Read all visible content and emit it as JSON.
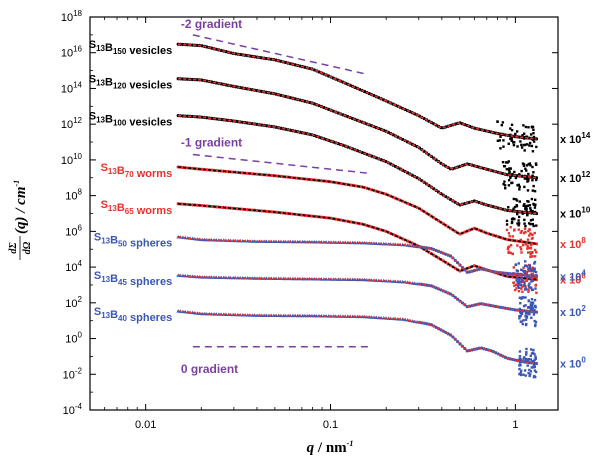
{
  "colors": {
    "black_series": "#000000",
    "red_series": "#e8322f",
    "blue_series": "#3a57b5",
    "gradient_lines": "#7b3fa0",
    "fit_black_on_black": "#e8322f",
    "fit_red": "#000000",
    "fit_blue": "#e8322f"
  },
  "chart_data": {
    "type": "scatter",
    "xscale": "log",
    "yscale": "log",
    "xlim": [
      0.005,
      1.7
    ],
    "ylim": [
      0.0001,
      1e+18
    ],
    "xticks": [
      {
        "value": 0.01,
        "label": "0.01"
      },
      {
        "value": 0.1,
        "label": "0.1"
      },
      {
        "value": 1,
        "label": "1"
      }
    ],
    "yticks": [
      {
        "value": 1e+18,
        "base": "10",
        "exp": "18"
      },
      {
        "value": 1e+16,
        "base": "10",
        "exp": "16"
      },
      {
        "value": 100000000000000.0,
        "base": "10",
        "exp": "14"
      },
      {
        "value": 1000000000000.0,
        "base": "10",
        "exp": "12"
      },
      {
        "value": 10000000000.0,
        "base": "10",
        "exp": "10"
      },
      {
        "value": 100000000.0,
        "base": "10",
        "exp": "8"
      },
      {
        "value": 1000000.0,
        "base": "10",
        "exp": "6"
      },
      {
        "value": 10000.0,
        "base": "10",
        "exp": "4"
      },
      {
        "value": 100.0,
        "base": "10",
        "exp": "2"
      },
      {
        "value": 1,
        "base": "10",
        "exp": "0"
      },
      {
        "value": 0.01,
        "base": "10",
        "exp": "-2"
      },
      {
        "value": 0.0001,
        "base": "10",
        "exp": "-4"
      }
    ],
    "xlabel": {
      "var": "q",
      "rest": " / nm",
      "exp": "-1"
    },
    "ylabel": {
      "frac_num": "dΣ",
      "frac_den": "dΩ",
      "rest": "(q) / cm",
      "exp": "-1"
    },
    "series": [
      {
        "name": "S13B150 vesicles",
        "label_main": "S",
        "label_sub1": "13",
        "label_mid": "B",
        "label_sub2": "150",
        "label_tail": " vesicles",
        "color_key": "black_series",
        "multiplier": {
          "base": "x 10",
          "exp": "14"
        },
        "curve": [
          [
            0.015,
            3e+16
          ],
          [
            0.02,
            2.5e+16
          ],
          [
            0.03,
            9000000000000000.0
          ],
          [
            0.05,
            4000000000000000.0
          ],
          [
            0.08,
            1200000000000000.0
          ],
          [
            0.12,
            200000000000000.0
          ],
          [
            0.2,
            20000000000000.0
          ],
          [
            0.3,
            3000000000000.0
          ],
          [
            0.4,
            600000000000.0
          ],
          [
            0.5,
            1200000000000.0
          ],
          [
            0.6,
            600000000000.0
          ],
          [
            0.8,
            300000000000.0
          ],
          [
            1.0,
            200000000000.0
          ],
          [
            1.3,
            150000000000.0
          ]
        ],
        "noise_from": 0.8,
        "noise_to": 1.3
      },
      {
        "name": "S13B120 vesicles",
        "label_main": "S",
        "label_sub1": "13",
        "label_mid": "B",
        "label_sub2": "120",
        "label_tail": " vesicles",
        "color_key": "black_series",
        "multiplier": {
          "base": "x 10",
          "exp": "12"
        },
        "curve": [
          [
            0.015,
            350000000000000.0
          ],
          [
            0.02,
            300000000000000.0
          ],
          [
            0.03,
            130000000000000.0
          ],
          [
            0.05,
            50000000000000.0
          ],
          [
            0.08,
            15000000000000.0
          ],
          [
            0.12,
            3000000000000.0
          ],
          [
            0.2,
            400000000000.0
          ],
          [
            0.3,
            50000000000.0
          ],
          [
            0.4,
            6000000000.0
          ],
          [
            0.45,
            3000000000.0
          ],
          [
            0.55,
            6000000000.0
          ],
          [
            0.7,
            3000000000.0
          ],
          [
            0.9,
            1500000000.0
          ],
          [
            1.3,
            1000000000.0
          ]
        ],
        "noise_from": 0.85,
        "noise_to": 1.3
      },
      {
        "name": "S13B100 vesicles",
        "label_main": "S",
        "label_sub1": "13",
        "label_mid": "B",
        "label_sub2": "100",
        "label_tail": " vesicles",
        "color_key": "black_series",
        "multiplier": {
          "base": "x 10",
          "exp": "10"
        },
        "curve": [
          [
            0.015,
            3000000000000.0
          ],
          [
            0.02,
            2500000000000.0
          ],
          [
            0.03,
            1500000000000.0
          ],
          [
            0.05,
            700000000000.0
          ],
          [
            0.08,
            250000000000.0
          ],
          [
            0.12,
            60000000000.0
          ],
          [
            0.2,
            8000000000.0
          ],
          [
            0.3,
            900000000.0
          ],
          [
            0.4,
            120000000.0
          ],
          [
            0.5,
            30000000.0
          ],
          [
            0.6,
            50000000.0
          ],
          [
            0.7,
            30000000.0
          ],
          [
            0.9,
            15000000.0
          ],
          [
            1.3,
            10000000.0
          ]
        ],
        "noise_from": 0.9,
        "noise_to": 1.3
      },
      {
        "name": "S13B70 worms",
        "label_main": "S",
        "label_sub1": "13",
        "label_mid": "B",
        "label_sub2": "70",
        "label_tail": " worms",
        "color_key": "red_series",
        "multiplier": {
          "base": "x 10",
          "exp": "8"
        },
        "curve": [
          [
            0.015,
            4000000000.0
          ],
          [
            0.02,
            3000000000.0
          ],
          [
            0.05,
            1300000000.0
          ],
          [
            0.1,
            600000000.0
          ],
          [
            0.15,
            300000000.0
          ],
          [
            0.2,
            120000000.0
          ],
          [
            0.3,
            20000000.0
          ],
          [
            0.4,
            3000000.0
          ],
          [
            0.5,
            700000.0
          ],
          [
            0.6,
            1500000.0
          ],
          [
            0.7,
            800000.0
          ],
          [
            0.9,
            350000.0
          ],
          [
            1.3,
            200000.0
          ]
        ],
        "noise_from": 0.9,
        "noise_to": 1.3
      },
      {
        "name": "S13B65 worms",
        "label_main": "S",
        "label_sub1": "13",
        "label_mid": "B",
        "label_sub2": "65",
        "label_tail": " worms",
        "color_key": "red_series",
        "multiplier": {
          "base": "x 10",
          "exp": "6"
        },
        "curve": [
          [
            0.015,
            35000000.0
          ],
          [
            0.02,
            28000000.0
          ],
          [
            0.05,
            12000000.0
          ],
          [
            0.1,
            5500000.0
          ],
          [
            0.15,
            2500000.0
          ],
          [
            0.2,
            1000000.0
          ],
          [
            0.3,
            150000.0
          ],
          [
            0.4,
            25000.0
          ],
          [
            0.5,
            6000.0
          ],
          [
            0.6,
            12000.0
          ],
          [
            0.7,
            7000.0
          ],
          [
            0.9,
            3000.0
          ],
          [
            1.3,
            2000.0
          ]
        ],
        "noise_from": 0.95,
        "noise_to": 1.3
      },
      {
        "name": "S13B50 spheres",
        "label_main": "S",
        "label_sub1": "13",
        "label_mid": "B",
        "label_sub2": "50",
        "label_tail": " spheres",
        "color_key": "blue_series",
        "multiplier": {
          "base": "x 10",
          "exp": "4"
        },
        "curve": [
          [
            0.015,
            500000.0
          ],
          [
            0.02,
            350000.0
          ],
          [
            0.04,
            280000.0
          ],
          [
            0.08,
            260000.0
          ],
          [
            0.15,
            230000.0
          ],
          [
            0.25,
            180000.0
          ],
          [
            0.35,
            110000.0
          ],
          [
            0.45,
            40000.0
          ],
          [
            0.55,
            5000.0
          ],
          [
            0.65,
            8000.0
          ],
          [
            0.8,
            5000.0
          ],
          [
            1.0,
            4000.0
          ],
          [
            1.3,
            3000.0
          ]
        ],
        "noise_from": 1.0,
        "noise_to": 1.3
      },
      {
        "name": "S13B45 spheres",
        "label_main": "S",
        "label_sub1": "13",
        "label_mid": "B",
        "label_sub2": "45",
        "label_tail": " spheres",
        "color_key": "blue_series",
        "multiplier": {
          "base": "x 10",
          "exp": "2"
        },
        "curve": [
          [
            0.015,
            3500.0
          ],
          [
            0.02,
            2800.0
          ],
          [
            0.04,
            2400.0
          ],
          [
            0.08,
            2200.0
          ],
          [
            0.15,
            2000.0
          ],
          [
            0.25,
            1500.0
          ],
          [
            0.35,
            900.0
          ],
          [
            0.45,
            300.0
          ],
          [
            0.55,
            60.0
          ],
          [
            0.65,
            90.0
          ],
          [
            0.8,
            60.0
          ],
          [
            1.0,
            40.0
          ],
          [
            1.3,
            30.0
          ]
        ],
        "noise_from": 1.05,
        "noise_to": 1.3
      },
      {
        "name": "S13B40 spheres",
        "label_main": "S",
        "label_sub1": "13",
        "label_mid": "B",
        "label_sub2": "40",
        "label_tail": " spheres",
        "color_key": "blue_series",
        "multiplier": {
          "base": "x 10",
          "exp": "0"
        },
        "curve": [
          [
            0.015,
            35.0
          ],
          [
            0.02,
            25.0
          ],
          [
            0.04,
            20.0
          ],
          [
            0.08,
            19.0
          ],
          [
            0.15,
            17.0
          ],
          [
            0.25,
            12.0
          ],
          [
            0.35,
            6
          ],
          [
            0.45,
            1.5
          ],
          [
            0.55,
            0.2
          ],
          [
            0.65,
            0.3
          ],
          [
            0.75,
            0.2
          ],
          [
            0.9,
            0.08
          ],
          [
            1.1,
            0.05
          ],
          [
            1.3,
            0.04
          ]
        ],
        "noise_from": 1.05,
        "noise_to": 1.3
      }
    ],
    "reference_lines": [
      {
        "label": "-2 gradient",
        "x": [
          0.018,
          0.16
        ],
        "y": [
          1e+17,
          600000000000000.0
        ],
        "label_at": {
          "x": 0.0155,
          "y": 2.5e+17
        }
      },
      {
        "label": "-1 gradient",
        "x": [
          0.018,
          0.16
        ],
        "y": [
          20000000000.0,
          1800000000.0
        ],
        "label_at": {
          "x": 0.0155,
          "y": 55000000000.0
        }
      },
      {
        "label": "0 gradient",
        "x": [
          0.018,
          0.16
        ],
        "y": [
          0.35,
          0.35
        ],
        "label_at": {
          "x": 0.0155,
          "y": 0.012
        }
      }
    ]
  }
}
